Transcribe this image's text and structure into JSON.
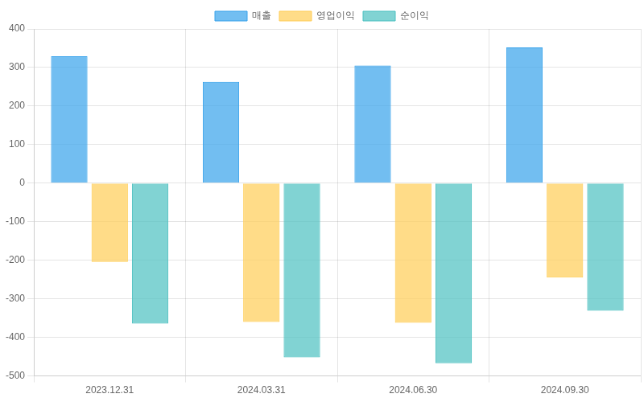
{
  "chart_data": {
    "type": "bar",
    "categories": [
      "2023.12.31",
      "2024.03.31",
      "2024.06.30",
      "2024.09.30"
    ],
    "series": [
      {
        "name": "매출",
        "color": "#36a2eb",
        "values": [
          329,
          263,
          305,
          352
        ]
      },
      {
        "name": "영업이익",
        "color": "#ffcd56",
        "values": [
          -204,
          -360,
          -362,
          -245
        ]
      },
      {
        "name": "순이익",
        "color": "#4bc0c0",
        "values": [
          -364,
          -452,
          -467,
          -331
        ]
      }
    ],
    "ylim": [
      -500,
      400
    ],
    "yticks": [
      -500,
      -400,
      -300,
      -200,
      -100,
      0,
      100,
      200,
      300,
      400
    ],
    "grid": true,
    "legend": "top"
  }
}
